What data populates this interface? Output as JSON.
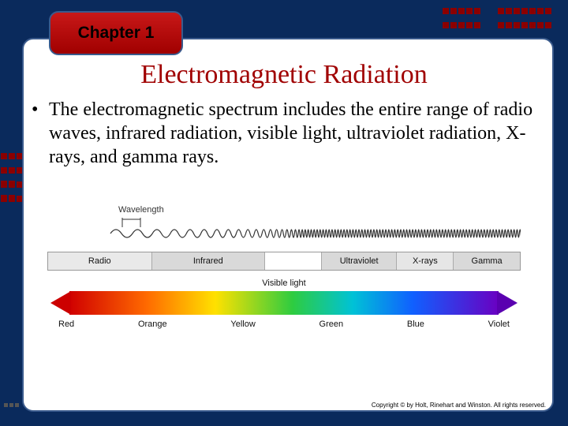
{
  "chapter_label": "Chapter 1",
  "title": "Electromagnetic Radiation",
  "bullet_text": "The electromagnetic spectrum includes the entire range of radio waves, infrared radiation, visible light, ultraviolet radiation, X-rays, and gamma rays.",
  "diagram": {
    "wavelength_label": "Wavelength",
    "bands": [
      {
        "label": "Radio",
        "width_pct": 22,
        "bg": "#e9e9e9"
      },
      {
        "label": "Infrared",
        "width_pct": 24,
        "bg": "#d9d9d9"
      },
      {
        "label": "",
        "width_pct": 12,
        "bg": "#ffffff"
      },
      {
        "label": "Ultraviolet",
        "width_pct": 16,
        "bg": "#d9d9d9"
      },
      {
        "label": "X-rays",
        "width_pct": 12,
        "bg": "#e6e6e6"
      },
      {
        "label": "Gamma",
        "width_pct": 14,
        "bg": "#d9d9d9"
      }
    ],
    "visible_label": "Visible light",
    "visible_colors": [
      "Red",
      "Orange",
      "Yellow",
      "Green",
      "Blue",
      "Violet"
    ],
    "gradient_stops": [
      "#d00000",
      "#ff6a00",
      "#ffe100",
      "#2ecc40",
      "#00c2d6",
      "#1060ff",
      "#6a00c2"
    ],
    "arrow_head_color": "#cc0000",
    "arrow_head_color_right": "#5a00b0",
    "wave_stroke": "#333333"
  },
  "colors": {
    "slide_bg": "#0a2a5c",
    "panel_bg": "#ffffff",
    "accent_red": "#a00000",
    "badge_gradient_top": "#c81818",
    "badge_gradient_bottom": "#a00000",
    "border": "#3a5a8c",
    "deco_square": "#8b0000"
  },
  "copyright": "Copyright © by Holt, Rinehart and Winston. All rights reserved."
}
